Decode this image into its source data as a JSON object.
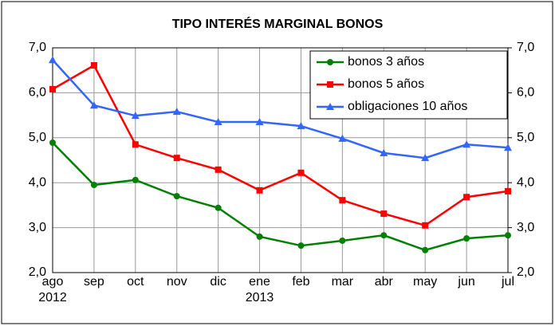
{
  "chart_data": {
    "type": "line",
    "title": "TIPO INTERÉS MARGINAL BONOS",
    "categories": [
      "ago\n2012",
      "sep",
      "oct",
      "nov",
      "dic",
      "ene\n2013",
      "feb",
      "mar",
      "abr",
      "may",
      "jun",
      "jul"
    ],
    "series": [
      {
        "name": "bonos 3 años",
        "color": "#008000",
        "marker": "circle",
        "values": [
          4.89,
          3.95,
          4.06,
          3.7,
          3.44,
          2.8,
          2.6,
          2.71,
          2.83,
          2.5,
          2.76,
          2.83
        ]
      },
      {
        "name": "bonos 5 años",
        "color": "#ff0000",
        "marker": "square",
        "values": [
          6.08,
          6.61,
          4.85,
          4.55,
          4.29,
          3.83,
          4.22,
          3.61,
          3.31,
          3.05,
          3.68,
          3.81
        ]
      },
      {
        "name": "obligaciones 10 años",
        "color": "#3366ff",
        "marker": "triangle",
        "values": [
          6.73,
          5.72,
          5.49,
          5.58,
          5.35,
          5.35,
          5.26,
          4.98,
          4.66,
          4.55,
          4.85,
          4.78
        ]
      }
    ],
    "ylim": [
      2,
      7
    ],
    "yticks": [
      {
        "value": 2,
        "label": "2,0"
      },
      {
        "value": 3,
        "label": "3,0"
      },
      {
        "value": 4,
        "label": "4,0"
      },
      {
        "value": 5,
        "label": "5,0"
      },
      {
        "value": 6,
        "label": "6,0"
      },
      {
        "value": 7,
        "label": "7,0"
      }
    ],
    "y2lim": [
      2,
      7
    ],
    "y2ticks": [
      {
        "value": 2,
        "label": "2,0"
      },
      {
        "value": 3,
        "label": "3,0"
      },
      {
        "value": 4,
        "label": "4,0"
      },
      {
        "value": 5,
        "label": "5,0"
      },
      {
        "value": 6,
        "label": "6,0"
      },
      {
        "value": 7,
        "label": "7,0"
      }
    ],
    "grid": true,
    "legend": "upper right"
  }
}
